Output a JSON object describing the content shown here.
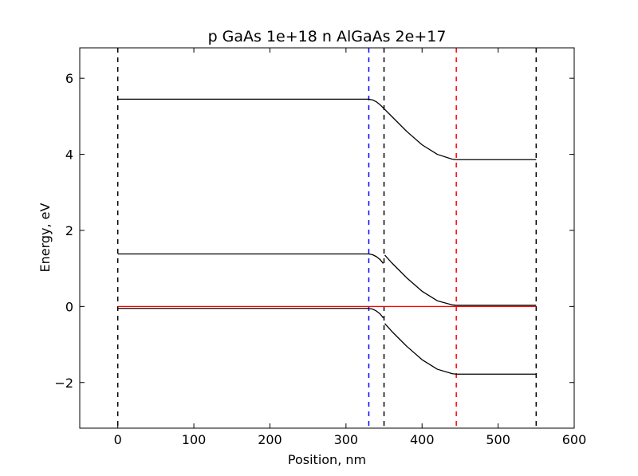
{
  "chart_data": {
    "type": "line",
    "title": "p GaAs 1e+18 n AlGaAs 2e+17",
    "xlabel": "Position, nm",
    "ylabel": "Energy, eV",
    "xlim": [
      -50,
      600
    ],
    "ylim": [
      -3.2,
      6.8
    ],
    "xticks": [
      0,
      100,
      200,
      300,
      400,
      500,
      600
    ],
    "xtick_labels": [
      "0",
      "100",
      "200",
      "300",
      "400",
      "500",
      "600"
    ],
    "yticks": [
      -2,
      0,
      2,
      4,
      6
    ],
    "ytick_labels": [
      "−2",
      "0",
      "2",
      "4",
      "6"
    ],
    "grid": false,
    "series": [
      {
        "color": "#000000",
        "style": "solid",
        "x": [
          0,
          330,
          335,
          340,
          345,
          350,
          360,
          380,
          400,
          420,
          440,
          445,
          550
        ],
        "y": [
          5.45,
          5.45,
          5.43,
          5.38,
          5.3,
          5.2,
          5.0,
          4.6,
          4.25,
          4.0,
          3.87,
          3.86,
          3.86
        ]
      },
      {
        "color": "#000000",
        "style": "solid",
        "x": [
          0,
          330,
          335,
          340,
          345,
          349
        ],
        "y": [
          1.38,
          1.38,
          1.36,
          1.31,
          1.23,
          1.13
        ]
      },
      {
        "color": "#000000",
        "style": "solid",
        "x": [
          351,
          360,
          380,
          400,
          420,
          440,
          445,
          550
        ],
        "y": [
          1.35,
          1.15,
          0.75,
          0.4,
          0.15,
          0.04,
          0.03,
          0.03
        ]
      },
      {
        "color": "#000000",
        "style": "solid",
        "x": [
          0,
          330,
          335,
          340,
          345,
          349
        ],
        "y": [
          -0.05,
          -0.05,
          -0.07,
          -0.12,
          -0.2,
          -0.3
        ]
      },
      {
        "color": "#000000",
        "style": "solid",
        "x": [
          351,
          360,
          380,
          400,
          420,
          440,
          445,
          550
        ],
        "y": [
          -0.45,
          -0.65,
          -1.05,
          -1.4,
          -1.65,
          -1.77,
          -1.78,
          -1.78
        ]
      },
      {
        "color": "#ff0000",
        "style": "solid",
        "x": [
          0,
          550
        ],
        "y": [
          0,
          0
        ]
      }
    ],
    "vlines": [
      {
        "x": 0,
        "color": "#000000",
        "style": "dashed"
      },
      {
        "x": 330,
        "color": "#0000ff",
        "style": "dashed"
      },
      {
        "x": 350,
        "color": "#000000",
        "style": "dashed"
      },
      {
        "x": 445,
        "color": "#ff0000",
        "style": "dashed"
      },
      {
        "x": 550,
        "color": "#000000",
        "style": "dashed"
      }
    ]
  }
}
